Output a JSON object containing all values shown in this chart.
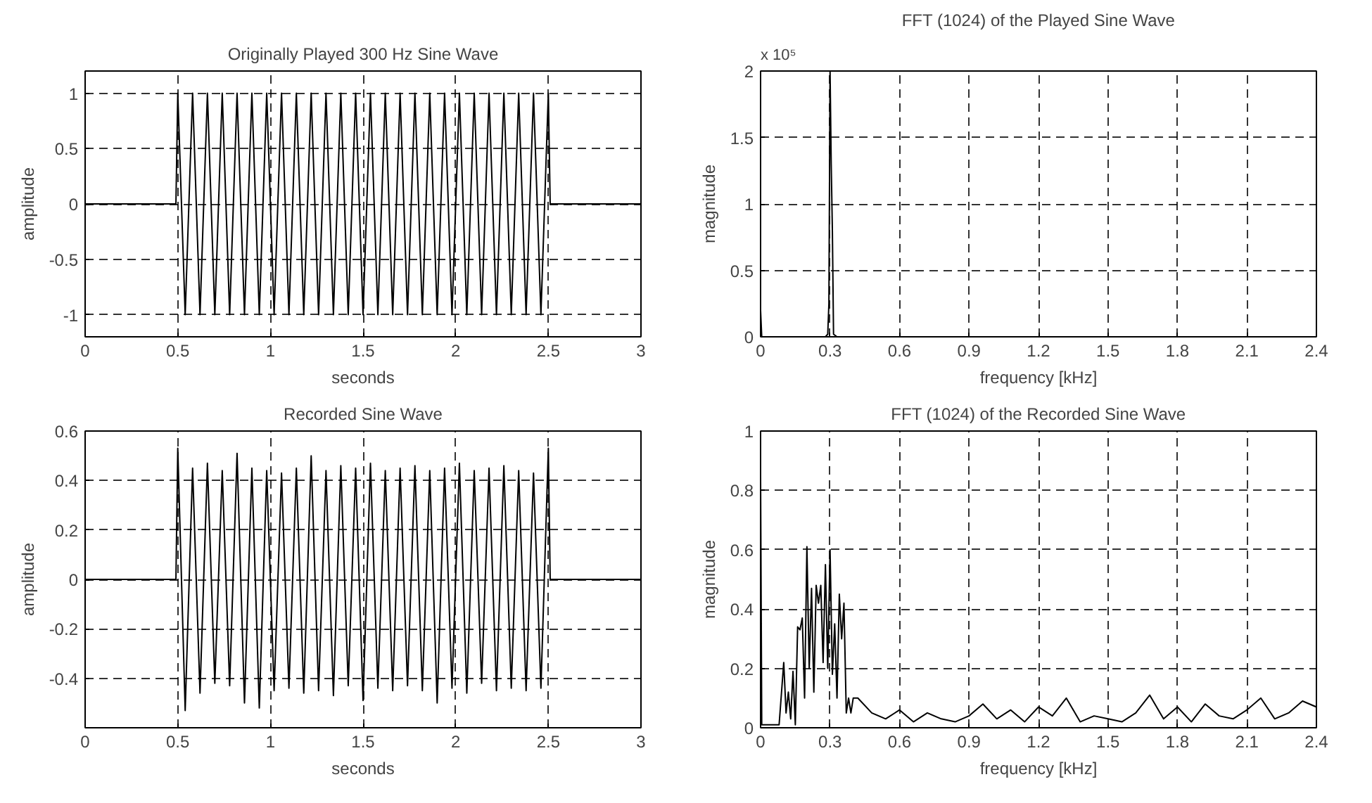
{
  "chart_data": [
    {
      "type": "line",
      "title": "Originally Played 300 Hz Sine Wave",
      "xlabel": "seconds",
      "ylabel": "amplitude",
      "xlim": [
        0,
        3
      ],
      "ylim": [
        -1.2,
        1.2
      ],
      "xticks": [
        0,
        0.5,
        1,
        1.5,
        2,
        2.5,
        3
      ],
      "yticks": [
        -1,
        -0.5,
        0,
        0.5,
        1
      ],
      "grid": true,
      "x": [
        0,
        0.49,
        0.5,
        0.54,
        0.58,
        0.62,
        0.66,
        0.7,
        0.74,
        0.78,
        0.82,
        0.86,
        0.9,
        0.94,
        0.98,
        1.02,
        1.06,
        1.1,
        1.14,
        1.18,
        1.22,
        1.26,
        1.3,
        1.34,
        1.38,
        1.42,
        1.46,
        1.5,
        1.54,
        1.58,
        1.62,
        1.66,
        1.7,
        1.74,
        1.78,
        1.82,
        1.86,
        1.9,
        1.94,
        1.98,
        2.02,
        2.06,
        2.1,
        2.14,
        2.18,
        2.22,
        2.26,
        2.3,
        2.34,
        2.38,
        2.42,
        2.46,
        2.5,
        2.51,
        3
      ],
      "series": [
        {
          "color": "#000000",
          "values": [
            0,
            0,
            1,
            -1,
            1,
            -1,
            1,
            -1,
            1,
            -1,
            1,
            -1,
            1,
            -1,
            1,
            -1,
            1,
            -1,
            1,
            -1,
            1,
            -1,
            1,
            -1,
            1,
            -1,
            1,
            -1,
            1,
            -1,
            1,
            -1,
            1,
            -1,
            1,
            -1,
            1,
            -1,
            1,
            -1,
            1,
            -1,
            1,
            -1,
            1,
            -1,
            1,
            -1,
            1,
            -1,
            1,
            -1,
            1,
            0,
            0
          ]
        }
      ]
    },
    {
      "type": "line",
      "title": "FFT (1024) of the Played Sine Wave",
      "xlabel": "frequency [kHz]",
      "ylabel": "magnitude",
      "annotations": [
        "x 10⁵"
      ],
      "xlim": [
        0,
        2.4
      ],
      "ylim": [
        0,
        2
      ],
      "xticks": [
        0,
        0.3,
        0.6,
        0.9,
        1.2,
        1.5,
        1.8,
        2.1,
        2.4
      ],
      "yticks": [
        0,
        0.5,
        1,
        1.5,
        2
      ],
      "grid": true,
      "x": [
        0,
        0.005,
        0.28,
        0.29,
        0.295,
        0.3,
        0.305,
        0.31,
        0.315,
        0.33,
        2.4
      ],
      "series": [
        {
          "color": "#000000",
          "values": [
            0.2,
            0,
            0,
            0.02,
            0.25,
            2,
            1.3,
            0.8,
            0.02,
            0,
            0
          ]
        }
      ]
    },
    {
      "type": "line",
      "title": "Recorded Sine Wave",
      "xlabel": "seconds",
      "ylabel": "amplitude",
      "xlim": [
        0,
        3
      ],
      "ylim": [
        -0.6,
        0.6
      ],
      "xticks": [
        0,
        0.5,
        1,
        1.5,
        2,
        2.5,
        3
      ],
      "yticks": [
        -0.4,
        -0.2,
        0,
        0.2,
        0.4,
        0.6
      ],
      "grid": true,
      "x": [
        0,
        0.49,
        0.5,
        0.54,
        0.58,
        0.62,
        0.66,
        0.7,
        0.74,
        0.78,
        0.82,
        0.86,
        0.9,
        0.94,
        0.98,
        1.02,
        1.06,
        1.1,
        1.14,
        1.18,
        1.22,
        1.26,
        1.3,
        1.34,
        1.38,
        1.42,
        1.46,
        1.5,
        1.54,
        1.58,
        1.62,
        1.66,
        1.7,
        1.74,
        1.78,
        1.82,
        1.86,
        1.9,
        1.94,
        1.98,
        2.02,
        2.06,
        2.1,
        2.14,
        2.18,
        2.22,
        2.26,
        2.3,
        2.34,
        2.38,
        2.42,
        2.46,
        2.5,
        2.51,
        3
      ],
      "series": [
        {
          "color": "#000000",
          "values": [
            0,
            0,
            0.53,
            -0.53,
            0.45,
            -0.46,
            0.47,
            -0.42,
            0.44,
            -0.43,
            0.51,
            -0.5,
            0.45,
            -0.52,
            0.44,
            -0.45,
            0.43,
            -0.44,
            0.45,
            -0.46,
            0.5,
            -0.45,
            0.44,
            -0.47,
            0.46,
            -0.43,
            0.45,
            -0.49,
            0.47,
            -0.44,
            0.44,
            -0.45,
            0.45,
            -0.43,
            0.46,
            -0.45,
            0.44,
            -0.5,
            0.45,
            -0.44,
            0.47,
            -0.46,
            0.44,
            -0.42,
            0.45,
            -0.45,
            0.46,
            -0.44,
            0.44,
            -0.45,
            0.43,
            -0.44,
            0.53,
            0,
            0
          ]
        }
      ]
    },
    {
      "type": "line",
      "title": "FFT (1024) of the Recorded Sine Wave",
      "xlabel": "frequency [kHz]",
      "ylabel": "magnitude",
      "xlim": [
        0,
        2.4
      ],
      "ylim": [
        0,
        1
      ],
      "xticks": [
        0,
        0.3,
        0.6,
        0.9,
        1.2,
        1.5,
        1.8,
        2.1,
        2.4
      ],
      "yticks": [
        0,
        0.2,
        0.4,
        0.6,
        0.8,
        1
      ],
      "grid": true,
      "x": [
        0,
        0.005,
        0.08,
        0.1,
        0.11,
        0.12,
        0.13,
        0.14,
        0.15,
        0.16,
        0.17,
        0.18,
        0.19,
        0.2,
        0.21,
        0.22,
        0.23,
        0.24,
        0.25,
        0.26,
        0.27,
        0.28,
        0.29,
        0.3,
        0.31,
        0.32,
        0.33,
        0.34,
        0.35,
        0.36,
        0.37,
        0.38,
        0.39,
        0.4,
        0.42,
        0.48,
        0.54,
        0.6,
        0.66,
        0.72,
        0.78,
        0.84,
        0.9,
        0.96,
        1.02,
        1.08,
        1.14,
        1.2,
        1.26,
        1.32,
        1.38,
        1.44,
        1.5,
        1.56,
        1.62,
        1.68,
        1.74,
        1.8,
        1.86,
        1.92,
        1.98,
        2.04,
        2.1,
        2.16,
        2.22,
        2.28,
        2.34,
        2.4
      ],
      "series": [
        {
          "color": "#000000",
          "values": [
            0.85,
            0.01,
            0.01,
            0.22,
            0.05,
            0.12,
            0.03,
            0.19,
            0.01,
            0.34,
            0.33,
            0.37,
            0.1,
            0.61,
            0.2,
            0.47,
            0.12,
            0.48,
            0.42,
            0.48,
            0.22,
            0.55,
            0.2,
            0.6,
            0.18,
            0.35,
            0.1,
            0.45,
            0.3,
            0.42,
            0.05,
            0.1,
            0.05,
            0.1,
            0.1,
            0.05,
            0.03,
            0.06,
            0.02,
            0.05,
            0.03,
            0.02,
            0.04,
            0.08,
            0.03,
            0.06,
            0.02,
            0.07,
            0.04,
            0.1,
            0.02,
            0.04,
            0.03,
            0.02,
            0.05,
            0.11,
            0.03,
            0.07,
            0.02,
            0.08,
            0.04,
            0.03,
            0.06,
            0.1,
            0.03,
            0.05,
            0.09,
            0.07
          ]
        }
      ]
    }
  ]
}
